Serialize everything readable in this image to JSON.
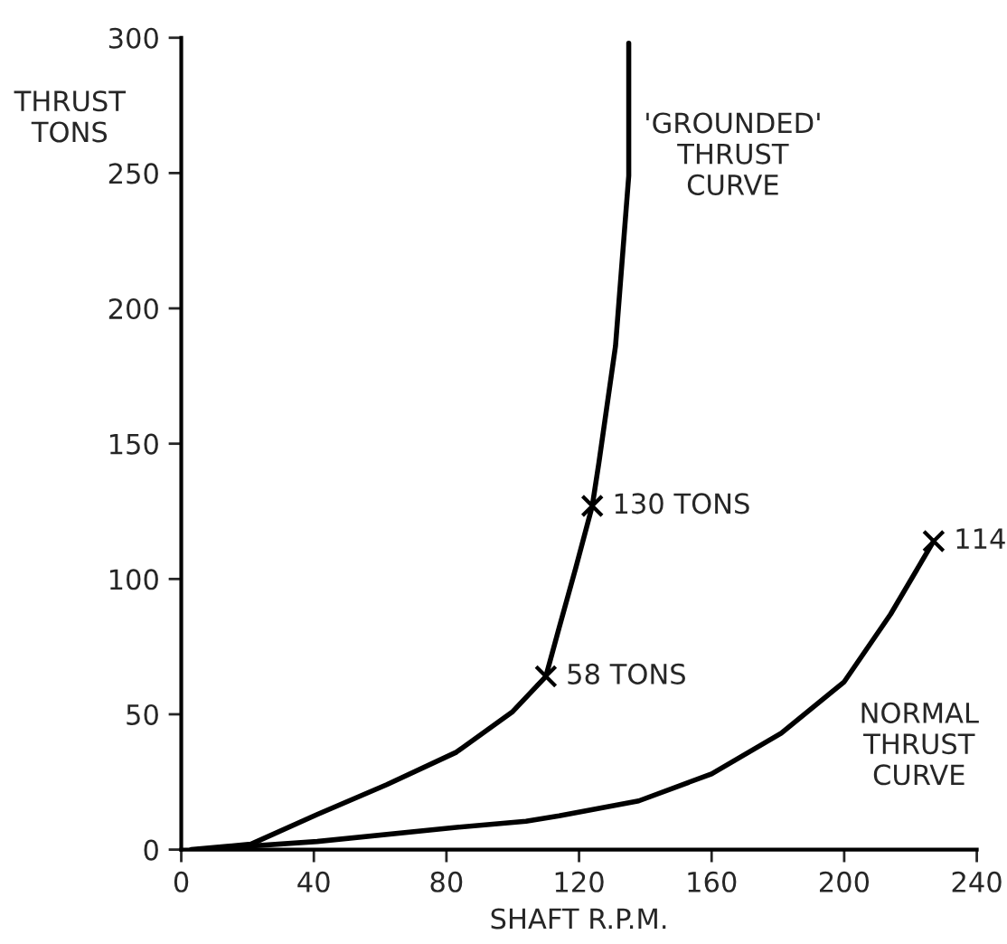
{
  "chart_data": {
    "type": "line",
    "xlabel": "SHAFT R.P.M.",
    "ylabel": "THRUST\nTONS",
    "xlim": [
      0,
      240
    ],
    "ylim": [
      0,
      300
    ],
    "xticks": [
      0,
      40,
      80,
      120,
      160,
      200,
      240
    ],
    "yticks": [
      0,
      50,
      100,
      150,
      200,
      250,
      300
    ],
    "grid": false,
    "legend": false,
    "marker": "none",
    "line_style": "solid",
    "series": [
      {
        "color": "#000000",
        "x": [
          3,
          21,
          41,
          62,
          83,
          100,
          110,
          114,
          119,
          124,
          126,
          131,
          135,
          135
        ],
        "values": [
          0,
          2,
          13,
          24,
          36,
          51,
          64,
          82,
          104,
          127,
          143,
          186,
          249,
          298
        ]
      },
      {
        "color": "#000000",
        "x": [
          5,
          41,
          81,
          104,
          114,
          138,
          160,
          181,
          200,
          214,
          227
        ],
        "values": [
          0,
          3,
          8,
          10.5,
          12.5,
          18,
          28,
          43,
          62,
          87,
          114
        ]
      },
      {
        "type": "scatter",
        "marker": "cross",
        "color": "#000000",
        "x": [
          110,
          124,
          227
        ],
        "values": [
          64,
          127,
          114
        ]
      }
    ],
    "annotations": [
      {
        "text": "58 TONS",
        "x": 110,
        "y": 64
      },
      {
        "text": "130 TONS",
        "x": 124,
        "y": 127
      },
      {
        "text": "114",
        "x": 227,
        "y": 114
      },
      {
        "text": "'GROUNDED'\nTHRUST\nCURVE",
        "x": 135,
        "y": 280
      },
      {
        "text": "NORMAL\nTHRUST\nCURVE",
        "x": 200,
        "y": 62
      }
    ]
  }
}
